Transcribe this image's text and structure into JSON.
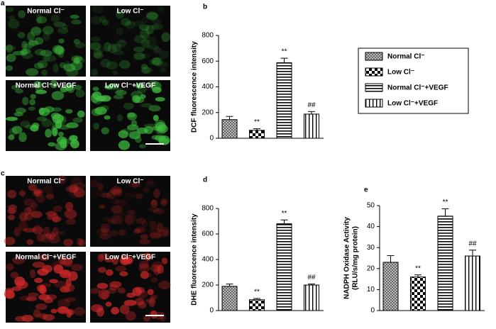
{
  "image_panels": [
    {
      "letter": "a",
      "color": "#3fbf3f",
      "labels": [
        "Normal Cl⁻",
        "Low Cl⁻",
        "Normal Cl⁻+VEGF",
        "Low Cl⁻+VEGF"
      ]
    },
    {
      "letter": "c",
      "color": "#d02828",
      "labels": [
        "Normal Cl⁻",
        "Low Cl⁻",
        "Normal Cl⁻+VEGF",
        "Low Cl⁻+VEGF"
      ]
    }
  ],
  "legend": {
    "entries": [
      "Normal Cl⁻",
      "Low Cl⁻",
      "Normal Cl⁻+VEGF",
      "Low Cl⁻+VEGF"
    ],
    "patterns": [
      "crosshatch",
      "checker",
      "hlines",
      "vlines"
    ]
  },
  "chart_data": [
    {
      "type": "bar",
      "panel": "b",
      "ylabel": [
        "DCF fluorescence intensity"
      ],
      "categories": [
        null,
        null,
        null,
        null
      ],
      "values": [
        145,
        62,
        588,
        188
      ],
      "errors": [
        25,
        12,
        35,
        20
      ],
      "annotations": [
        null,
        "**",
        "**",
        "##"
      ],
      "ylim": [
        0,
        800
      ],
      "yticks": [
        0,
        200,
        400,
        600,
        800
      ]
    },
    {
      "type": "bar",
      "panel": "d",
      "ylabel": [
        "DHE fluorescence intensity"
      ],
      "categories": [
        null,
        null,
        null,
        null
      ],
      "values": [
        190,
        85,
        680,
        200
      ],
      "errors": [
        18,
        10,
        30,
        8
      ],
      "annotations": [
        null,
        "**",
        "**",
        "##"
      ],
      "ylim": [
        0,
        800
      ],
      "yticks": [
        0,
        200,
        400,
        600,
        800
      ]
    },
    {
      "type": "bar",
      "panel": "e",
      "ylabel": [
        "NADPH Oxidase Activity",
        "(RLU/s/mg protein)"
      ],
      "categories": [
        null,
        null,
        null,
        null
      ],
      "values": [
        23,
        16,
        45,
        26
      ],
      "errors": [
        3.2,
        1,
        3.5,
        2.8
      ],
      "annotations": [
        null,
        "**",
        "**",
        "##"
      ],
      "ylim": [
        0,
        50
      ],
      "yticks": [
        0,
        10,
        20,
        30,
        40,
        50
      ]
    }
  ]
}
